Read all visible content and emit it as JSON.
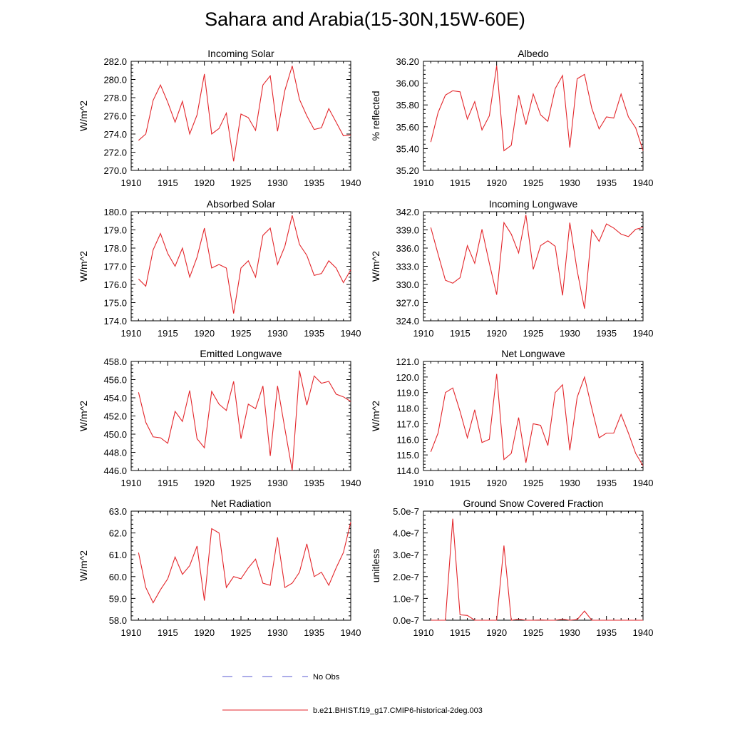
{
  "page": {
    "title": "Sahara and Arabia(15-30N,15W-60E)"
  },
  "colors": {
    "model_line": "#e3262b",
    "obs_line": "#5a5ad0",
    "axis": "#000000"
  },
  "legend": {
    "entries": [
      {
        "label": "No Obs",
        "style": "dashed",
        "color": "#5a5ad0"
      },
      {
        "label": "b.e21.BHIST.f19_g17.CMIP6-historical-2deg.003",
        "style": "solid",
        "color": "#e3262b"
      }
    ]
  },
  "chart_data": [
    {
      "type": "line",
      "title": "Incoming Solar",
      "ylabel": "W/m^2",
      "xlim": [
        1910,
        1940
      ],
      "ylim": [
        270.0,
        282.0
      ],
      "xticks": [
        "1910",
        "1915",
        "1920",
        "1925",
        "1930",
        "1935",
        "1940"
      ],
      "yticks": [
        "270.0",
        "272.0",
        "274.0",
        "276.0",
        "278.0",
        "280.0",
        "282.0"
      ],
      "x": [
        1911,
        1912,
        1913,
        1914,
        1915,
        1916,
        1917,
        1918,
        1919,
        1920,
        1921,
        1922,
        1923,
        1924,
        1925,
        1926,
        1927,
        1928,
        1929,
        1930,
        1931,
        1932,
        1933,
        1934,
        1935,
        1936,
        1937,
        1938,
        1939,
        1940
      ],
      "series": [
        {
          "values": [
            273.3,
            274.0,
            277.7,
            279.4,
            277.5,
            275.3,
            277.6,
            274.0,
            276.1,
            280.6,
            274.0,
            274.6,
            276.3,
            271.0,
            276.2,
            275.8,
            274.4,
            279.4,
            280.4,
            274.3,
            278.8,
            281.5,
            277.8,
            276.0,
            274.5,
            274.7,
            276.8,
            275.3,
            273.8,
            273.9
          ]
        }
      ]
    },
    {
      "type": "line",
      "title": "Albedo",
      "ylabel": "% reflected",
      "xlim": [
        1910,
        1940
      ],
      "ylim": [
        35.2,
        36.2
      ],
      "xticks": [
        "1910",
        "1915",
        "1920",
        "1925",
        "1930",
        "1935",
        "1940"
      ],
      "yticks": [
        "35.20",
        "35.40",
        "35.60",
        "35.80",
        "36.00",
        "36.20"
      ],
      "x": [
        1911,
        1912,
        1913,
        1914,
        1915,
        1916,
        1917,
        1918,
        1919,
        1920,
        1921,
        1922,
        1923,
        1924,
        1925,
        1926,
        1927,
        1928,
        1929,
        1930,
        1931,
        1932,
        1933,
        1934,
        1935,
        1936,
        1937,
        1938,
        1939,
        1940
      ],
      "series": [
        {
          "values": [
            35.46,
            35.73,
            35.89,
            35.93,
            35.92,
            35.67,
            35.83,
            35.57,
            35.7,
            36.16,
            35.38,
            35.43,
            35.89,
            35.62,
            35.9,
            35.71,
            35.65,
            35.95,
            36.07,
            35.41,
            36.04,
            36.08,
            35.77,
            35.58,
            35.69,
            35.68,
            35.9,
            35.69,
            35.59,
            35.38
          ]
        }
      ]
    },
    {
      "type": "line",
      "title": "Absorbed Solar",
      "ylabel": "W/m^2",
      "xlim": [
        1910,
        1940
      ],
      "ylim": [
        174.0,
        180.0
      ],
      "xticks": [
        "1910",
        "1915",
        "1920",
        "1925",
        "1930",
        "1935",
        "1940"
      ],
      "yticks": [
        "174.0",
        "175.0",
        "176.0",
        "177.0",
        "178.0",
        "179.0",
        "180.0"
      ],
      "x": [
        1911,
        1912,
        1913,
        1914,
        1915,
        1916,
        1917,
        1918,
        1919,
        1920,
        1921,
        1922,
        1923,
        1924,
        1925,
        1926,
        1927,
        1928,
        1929,
        1930,
        1931,
        1932,
        1933,
        1934,
        1935,
        1936,
        1937,
        1938,
        1939,
        1940
      ],
      "series": [
        {
          "values": [
            176.3,
            175.9,
            177.9,
            178.8,
            177.7,
            177.0,
            178.0,
            176.4,
            177.5,
            179.1,
            176.9,
            177.1,
            176.9,
            174.4,
            176.9,
            177.3,
            176.4,
            178.7,
            179.1,
            177.1,
            178.1,
            179.8,
            178.2,
            177.6,
            176.5,
            176.6,
            177.3,
            176.9,
            176.1,
            176.8
          ]
        }
      ]
    },
    {
      "type": "line",
      "title": "Incoming Longwave",
      "ylabel": "W/m^2",
      "xlim": [
        1910,
        1940
      ],
      "ylim": [
        324.0,
        342.0
      ],
      "xticks": [
        "1910",
        "1915",
        "1920",
        "1925",
        "1930",
        "1935",
        "1940"
      ],
      "yticks": [
        "324.0",
        "327.0",
        "330.0",
        "333.0",
        "336.0",
        "339.0",
        "342.0"
      ],
      "x": [
        1911,
        1912,
        1913,
        1914,
        1915,
        1916,
        1917,
        1918,
        1919,
        1920,
        1921,
        1922,
        1923,
        1924,
        1925,
        1926,
        1927,
        1928,
        1929,
        1930,
        1931,
        1932,
        1933,
        1934,
        1935,
        1936,
        1937,
        1938,
        1939,
        1940
      ],
      "series": [
        {
          "values": [
            339.4,
            335.0,
            330.7,
            330.2,
            331.1,
            336.4,
            333.5,
            339.1,
            333.5,
            328.3,
            340.2,
            338.3,
            335.2,
            341.5,
            332.5,
            336.4,
            337.2,
            336.3,
            328.2,
            340.2,
            332.3,
            326.0,
            339.0,
            337.1,
            340.0,
            339.3,
            338.3,
            337.9,
            339.1,
            339.4
          ]
        }
      ]
    },
    {
      "type": "line",
      "title": "Emitted Longwave",
      "ylabel": "W/m^2",
      "xlim": [
        1910,
        1940
      ],
      "ylim": [
        446.0,
        458.0
      ],
      "xticks": [
        "1910",
        "1915",
        "1920",
        "1925",
        "1930",
        "1935",
        "1940"
      ],
      "yticks": [
        "446.0",
        "448.0",
        "450.0",
        "452.0",
        "454.0",
        "456.0",
        "458.0"
      ],
      "x": [
        1911,
        1912,
        1913,
        1914,
        1915,
        1916,
        1917,
        1918,
        1919,
        1920,
        1921,
        1922,
        1923,
        1924,
        1925,
        1926,
        1927,
        1928,
        1929,
        1930,
        1931,
        1932,
        1933,
        1934,
        1935,
        1936,
        1937,
        1938,
        1939,
        1940
      ],
      "series": [
        {
          "values": [
            454.6,
            451.3,
            449.7,
            449.6,
            449.0,
            452.5,
            451.4,
            454.8,
            449.5,
            448.5,
            454.7,
            453.3,
            452.6,
            455.8,
            449.5,
            453.3,
            452.8,
            455.3,
            447.6,
            455.3,
            450.6,
            446.0,
            457.0,
            453.2,
            456.4,
            455.6,
            455.8,
            454.4,
            454.1,
            453.6
          ]
        }
      ]
    },
    {
      "type": "line",
      "title": "Net Longwave",
      "ylabel": "W/m^2",
      "xlim": [
        1910,
        1940
      ],
      "ylim": [
        114.0,
        121.0
      ],
      "xticks": [
        "1910",
        "1915",
        "1920",
        "1925",
        "1930",
        "1935",
        "1940"
      ],
      "yticks": [
        "114.0",
        "115.0",
        "116.0",
        "117.0",
        "118.0",
        "119.0",
        "120.0",
        "121.0"
      ],
      "x": [
        1911,
        1912,
        1913,
        1914,
        1915,
        1916,
        1917,
        1918,
        1919,
        1920,
        1921,
        1922,
        1923,
        1924,
        1925,
        1926,
        1927,
        1928,
        1929,
        1930,
        1931,
        1932,
        1933,
        1934,
        1935,
        1936,
        1937,
        1938,
        1939,
        1940
      ],
      "series": [
        {
          "values": [
            115.2,
            116.4,
            119.0,
            119.3,
            117.8,
            116.1,
            117.9,
            115.8,
            116.0,
            120.2,
            114.7,
            115.1,
            117.4,
            114.5,
            117.0,
            116.9,
            115.6,
            119.0,
            119.5,
            115.3,
            118.7,
            120.0,
            118.0,
            116.1,
            116.4,
            116.4,
            117.6,
            116.4,
            115.1,
            114.3
          ]
        }
      ]
    },
    {
      "type": "line",
      "title": "Net Radiation",
      "ylabel": "W/m^2",
      "xlim": [
        1910,
        1940
      ],
      "ylim": [
        58.0,
        63.0
      ],
      "xticks": [
        "1910",
        "1915",
        "1920",
        "1925",
        "1930",
        "1935",
        "1940"
      ],
      "yticks": [
        "58.0",
        "59.0",
        "60.0",
        "61.0",
        "62.0",
        "63.0"
      ],
      "x": [
        1911,
        1912,
        1913,
        1914,
        1915,
        1916,
        1917,
        1918,
        1919,
        1920,
        1921,
        1922,
        1923,
        1924,
        1925,
        1926,
        1927,
        1928,
        1929,
        1930,
        1931,
        1932,
        1933,
        1934,
        1935,
        1936,
        1937,
        1938,
        1939,
        1940
      ],
      "series": [
        {
          "values": [
            61.1,
            59.5,
            58.8,
            59.4,
            59.9,
            60.9,
            60.1,
            60.5,
            61.4,
            58.9,
            62.2,
            62.0,
            59.5,
            60.0,
            59.9,
            60.4,
            60.8,
            59.7,
            59.6,
            61.8,
            59.5,
            59.7,
            60.2,
            61.5,
            60.0,
            60.2,
            59.6,
            60.4,
            61.1,
            62.5
          ]
        }
      ]
    },
    {
      "type": "line",
      "title": "Ground Snow Covered Fraction",
      "ylabel": "unitless",
      "xlim": [
        1910,
        1940
      ],
      "ylim": [
        0,
        5e-07
      ],
      "xticks": [
        "1910",
        "1915",
        "1920",
        "1925",
        "1930",
        "1935",
        "1940"
      ],
      "yticks": [
        "0.0e-7",
        "1.0e-7",
        "2.0e-7",
        "3.0e-7",
        "4.0e-7",
        "5.0e-7"
      ],
      "x": [
        1911,
        1912,
        1913,
        1914,
        1915,
        1916,
        1917,
        1918,
        1919,
        1920,
        1921,
        1922,
        1923,
        1924,
        1925,
        1926,
        1927,
        1928,
        1929,
        1930,
        1931,
        1932,
        1933,
        1934,
        1935,
        1936,
        1937,
        1938,
        1939,
        1940
      ],
      "series": [
        {
          "values": [
            0,
            0,
            0,
            4.65e-07,
            2.5e-08,
            2.2e-08,
            0,
            0,
            0,
            0,
            3.42e-07,
            0,
            5e-09,
            0,
            0,
            1e-09,
            0,
            0,
            5e-09,
            0,
            3e-09,
            4.2e-08,
            0,
            0,
            0,
            0,
            0,
            0,
            0,
            0
          ]
        }
      ]
    }
  ]
}
